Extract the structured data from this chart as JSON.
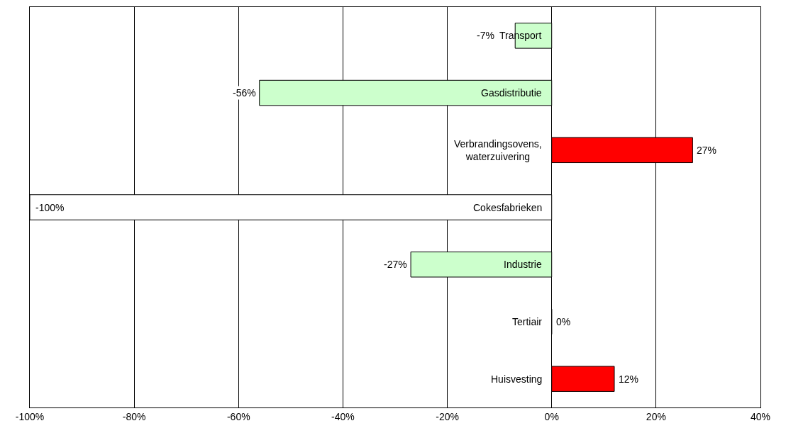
{
  "chart_data": {
    "type": "bar",
    "orientation": "horizontal",
    "categories": [
      "Transport",
      "Gasdistributie",
      "Verbrandingsovens,\nwaterzuivering",
      "Cokesfabrieken",
      "Industrie",
      "Tertiair",
      "Huisvesting"
    ],
    "values": [
      -7,
      -56,
      27,
      -100,
      -27,
      0,
      12
    ],
    "colors": [
      "#ccffcc",
      "#ccffcc",
      "#ff0000",
      "#ffffff",
      "#ccffcc",
      "#000000",
      "#ff0000"
    ],
    "value_labels": [
      "-7%",
      "-56%",
      "27%",
      "-100%",
      "-27%",
      "0%",
      "12%"
    ],
    "xlim": [
      -100,
      40
    ],
    "xticks": [
      {
        "value": -100,
        "label": "-100%"
      },
      {
        "value": -80,
        "label": "-80%"
      },
      {
        "value": -60,
        "label": "-60%"
      },
      {
        "value": -40,
        "label": "-40%"
      },
      {
        "value": -20,
        "label": "-20%"
      },
      {
        "value": 0,
        "label": "0%"
      },
      {
        "value": 20,
        "label": "20%"
      },
      {
        "value": 40,
        "label": "40%"
      }
    ],
    "grid": "x"
  }
}
